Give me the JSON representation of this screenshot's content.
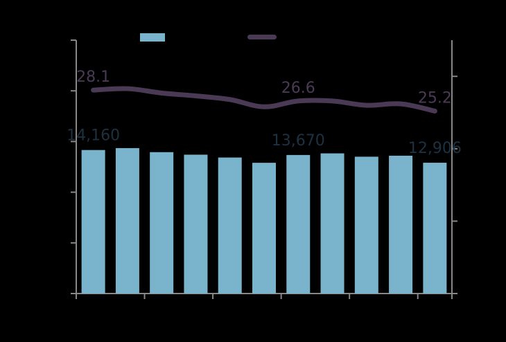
{
  "chart_data": {
    "type": "bar+line",
    "title": "",
    "xlabel": "",
    "ylabel": "",
    "y2label": "",
    "categories": [
      "",
      "",
      "",
      "",
      "",
      "",
      "",
      "",
      "",
      "",
      ""
    ],
    "legend_placement": "top",
    "grid": false,
    "colors": {
      "bar": "#7ab3cc",
      "line": "#4a3a55",
      "axis": "#888888",
      "bar_label": "#1e3140",
      "background": "#000000"
    },
    "series": [
      {
        "kind": "bar",
        "axis": "left",
        "values": [
          14160,
          14350,
          13950,
          13700,
          13420,
          12900,
          13670,
          13830,
          13500,
          13600,
          12906
        ]
      },
      {
        "kind": "line",
        "axis": "right",
        "values": [
          28.1,
          28.3,
          27.7,
          27.3,
          26.8,
          25.8,
          26.6,
          26.6,
          26.0,
          26.2,
          25.2
        ]
      }
    ],
    "ylim": [
      0,
      25000
    ],
    "y2lim": [
      0,
      35
    ],
    "y_ticks": [
      0,
      5000,
      10000,
      15000,
      20000,
      25000
    ],
    "y2_ticks": [
      0,
      10,
      20,
      30
    ],
    "bar_labels": [
      {
        "index": 0,
        "text": "14,160"
      },
      {
        "index": 6,
        "text": "13,670"
      },
      {
        "index": 10,
        "text": "12,906"
      }
    ],
    "line_labels": [
      {
        "index": 0,
        "text": "28.1"
      },
      {
        "index": 6,
        "text": "26.6"
      },
      {
        "index": 10,
        "text": "25.2"
      }
    ]
  }
}
